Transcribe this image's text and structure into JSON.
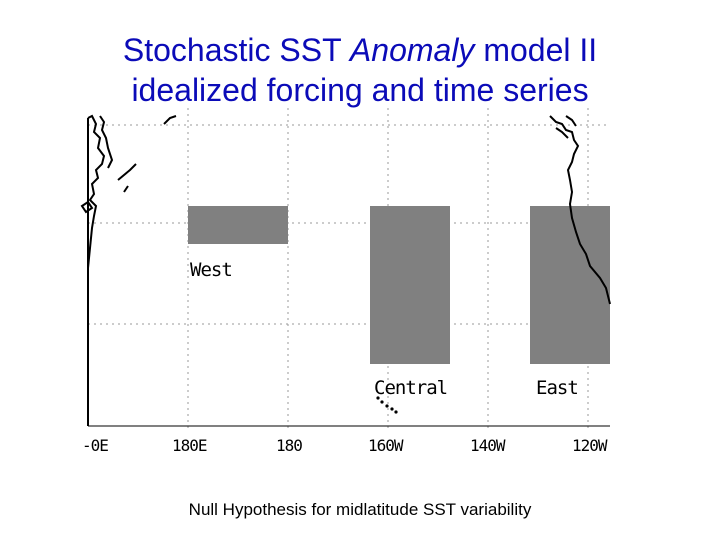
{
  "slide": {
    "title_part1": "Stochastic SST ",
    "title_italic": "Anomaly",
    "title_part2": " model II",
    "title_line2": "idealized forcing and time series",
    "caption": "Null Hypothesis for midlatitude SST variability"
  },
  "map": {
    "box_color": "#808080",
    "regions": [
      {
        "id": "west",
        "label": "West"
      },
      {
        "id": "central",
        "label": "Central"
      },
      {
        "id": "east",
        "label": "East"
      }
    ],
    "x_ticks": [
      "-0E",
      "180E",
      "180",
      "160W",
      "140W",
      "120W"
    ]
  }
}
